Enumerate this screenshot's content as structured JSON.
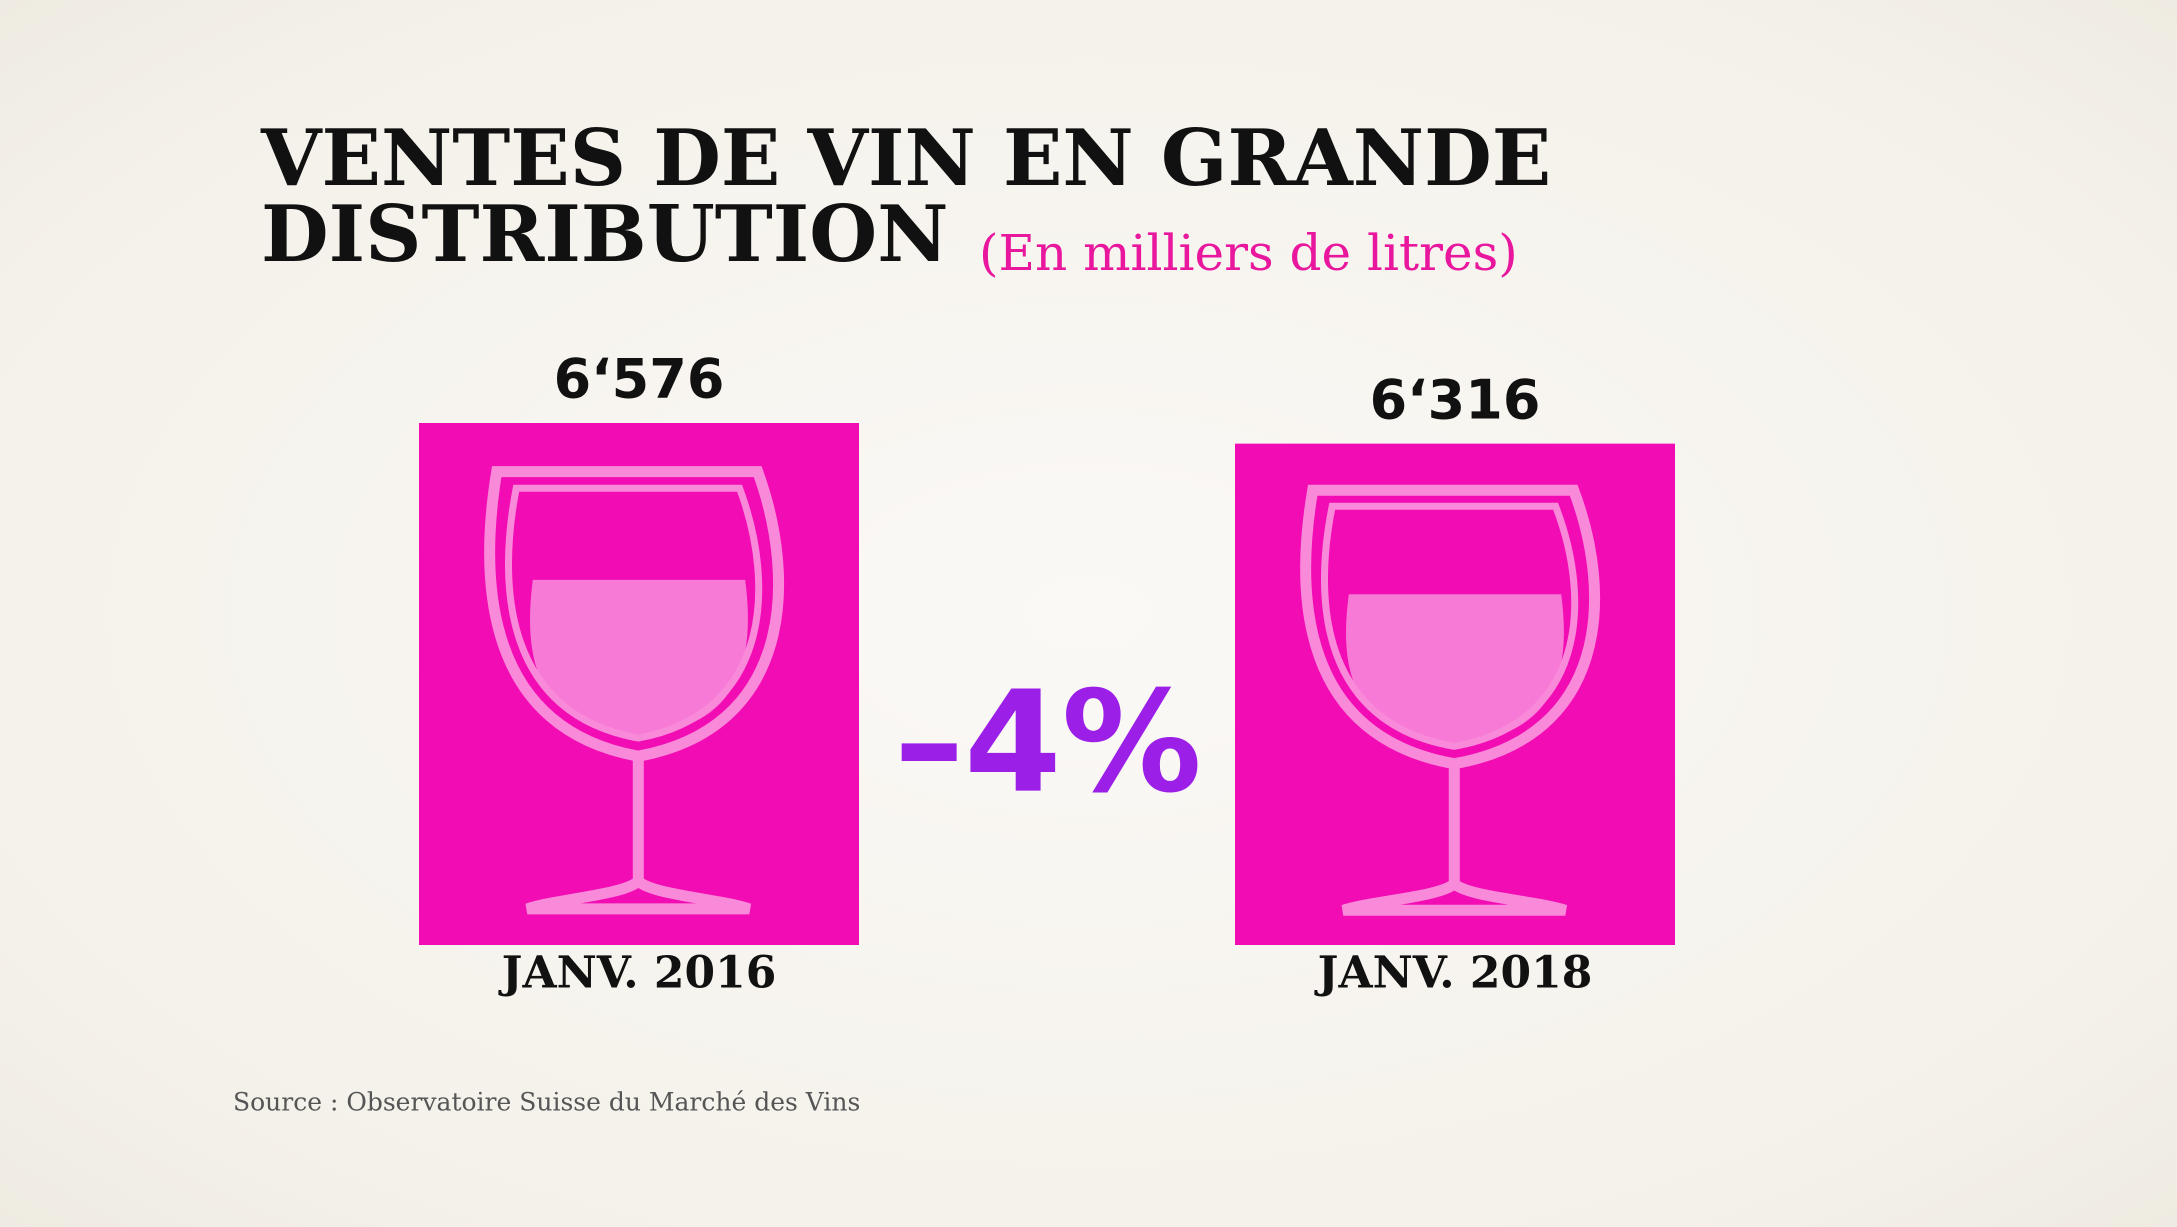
{
  "chart_data": {
    "type": "bar",
    "title": "VENTES DE VIN EN GRANDE DISTRIBUTION",
    "subtitle": "(En milliers de litres)",
    "categories": [
      "JANV. 2016",
      "JANV. 2018"
    ],
    "values": [
      6576,
      6316
    ],
    "value_labels": [
      "6‘576",
      "6‘316"
    ],
    "color": "#f20cb4",
    "annotation": "–4%",
    "source": "Source : Observatoire Suisse du Marché des Vins"
  }
}
